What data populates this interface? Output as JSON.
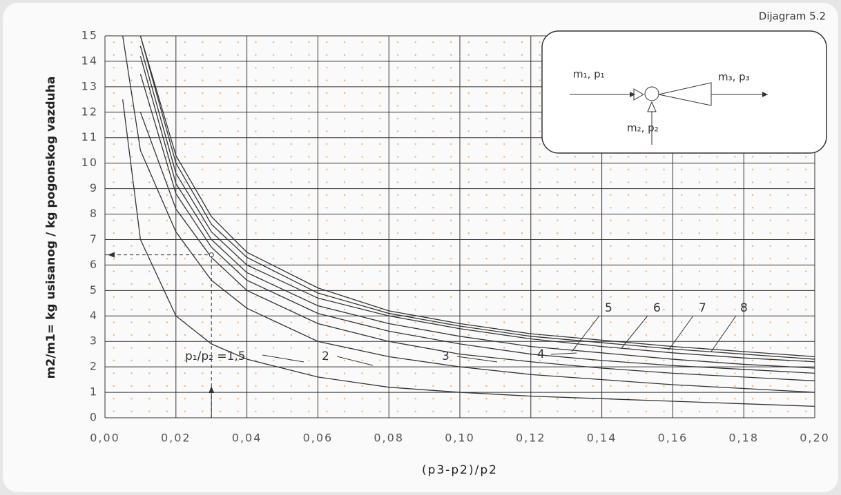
{
  "corner_label": "Dijagram 5.2",
  "chart_data": {
    "type": "line",
    "x_label": "(p3-p2)/p2",
    "y_label": "m2/m1= kg usisanog / kg pogonskog vazduha",
    "x": [
      0.005,
      0.01,
      0.02,
      0.03,
      0.04,
      0.06,
      0.08,
      0.1,
      0.12,
      0.14,
      0.16,
      0.18,
      0.2
    ],
    "series": [
      {
        "name": "p₁/p₂ =1,5",
        "color": "#333333",
        "values": [
          12.5,
          7,
          4,
          2.9,
          2.3,
          1.6,
          1.2,
          1.0,
          0.85,
          0.75,
          0.65,
          0.55,
          0.45
        ]
      },
      {
        "name": "2",
        "color": "#333333",
        "values": [
          15,
          10.5,
          7.3,
          5.4,
          4.3,
          3.0,
          2.4,
          2.0,
          1.7,
          1.5,
          1.3,
          1.15,
          1.0
        ]
      },
      {
        "name": "3",
        "color": "#333333",
        "values": [
          null,
          12,
          8.2,
          6.3,
          5.0,
          3.7,
          3.0,
          2.5,
          2.2,
          1.95,
          1.75,
          1.6,
          1.45
        ]
      },
      {
        "name": "4",
        "color": "#333333",
        "values": [
          null,
          13.5,
          8.8,
          6.7,
          5.4,
          4.1,
          3.4,
          2.9,
          2.5,
          2.25,
          2.05,
          1.9,
          1.75
        ]
      },
      {
        "name": "5",
        "color": "#333333",
        "values": [
          null,
          14.2,
          9.2,
          7.0,
          5.7,
          4.4,
          3.7,
          3.2,
          2.8,
          2.55,
          2.3,
          2.1,
          1.95
        ]
      },
      {
        "name": "6",
        "color": "#333333",
        "values": [
          null,
          14.6,
          9.6,
          7.3,
          6.0,
          4.7,
          4.0,
          3.5,
          3.1,
          2.8,
          2.55,
          2.35,
          2.2
        ]
      },
      {
        "name": "7",
        "color": "#333333",
        "values": [
          null,
          15,
          10.0,
          7.6,
          6.3,
          4.9,
          4.1,
          3.6,
          3.2,
          2.95,
          2.7,
          2.5,
          2.3
        ]
      },
      {
        "name": "8",
        "color": "#333333",
        "values": [
          null,
          15,
          10.3,
          7.9,
          6.5,
          5.1,
          4.2,
          3.7,
          3.3,
          3.05,
          2.8,
          2.6,
          2.4
        ]
      }
    ],
    "example": {
      "x": 0.03,
      "y": 6.4
    },
    "xlim": [
      0,
      0.2
    ],
    "ylim": [
      0,
      15
    ],
    "xticks": [
      {
        "value": 0,
        "label": "0,00"
      },
      {
        "value": 0.02,
        "label": "0,02"
      },
      {
        "value": 0.04,
        "label": "0,04"
      },
      {
        "value": 0.06,
        "label": "0,06"
      },
      {
        "value": 0.08,
        "label": "0,08"
      },
      {
        "value": 0.1,
        "label": "0,10"
      },
      {
        "value": 0.12,
        "label": "0,12"
      },
      {
        "value": 0.14,
        "label": "0,14"
      },
      {
        "value": 0.16,
        "label": "0,16"
      },
      {
        "value": 0.18,
        "label": "0,18"
      },
      {
        "value": 0.2,
        "label": "0,20"
      }
    ],
    "yticks": [
      0,
      1,
      2,
      3,
      4,
      5,
      6,
      7,
      8,
      9,
      10,
      11,
      12,
      13,
      14,
      15
    ],
    "grid": true
  },
  "inset": {
    "inlet": "m₁, p₁",
    "outlet": "m₃, p₃",
    "suction": "m₂, p₂"
  }
}
